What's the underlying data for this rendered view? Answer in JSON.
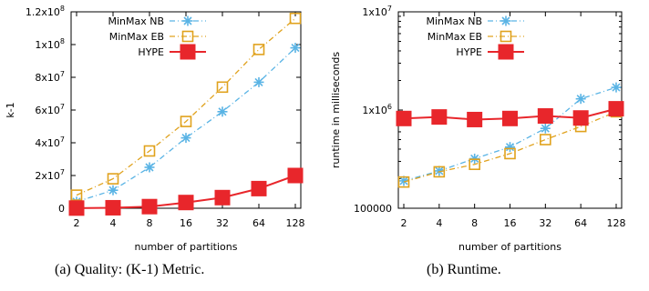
{
  "chart_data": [
    {
      "type": "line",
      "categories": [
        "2",
        "4",
        "8",
        "16",
        "32",
        "64",
        "128"
      ],
      "xlabel": "number of partitions",
      "ylabel": "k-1",
      "ylim": [
        0,
        120000000
      ],
      "yscale": "linear",
      "y_ticks": [
        {
          "value": 0,
          "label": "0"
        },
        {
          "value": 20000000,
          "label": "2x10^7"
        },
        {
          "value": 40000000,
          "label": "4x10^7"
        },
        {
          "value": 60000000,
          "label": "6x10^7"
        },
        {
          "value": 80000000,
          "label": "8x10^7"
        },
        {
          "value": 100000000,
          "label": "1x10^8"
        },
        {
          "value": 120000000,
          "label": "1.2x10^8"
        }
      ],
      "legend_position": "top-left",
      "series": [
        {
          "name": "MinMax NB",
          "color": "#5ab4e5",
          "marker": "asterisk",
          "values": [
            4000000,
            11000000,
            25000000,
            43000000,
            59000000,
            77000000,
            98000000
          ]
        },
        {
          "name": "MinMax EB",
          "color": "#e0a21d",
          "marker": "open-square",
          "values": [
            8000000,
            18000000,
            35000000,
            53000000,
            74000000,
            97000000,
            116000000
          ]
        },
        {
          "name": "HYPE",
          "color": "#e8262b",
          "marker": "filled-square",
          "values": [
            100000,
            300000,
            1000000,
            3500000,
            6500000,
            12000000,
            20000000
          ]
        }
      ],
      "caption": "(a) Quality: (K-1) Metric."
    },
    {
      "type": "line",
      "categories": [
        "2",
        "4",
        "8",
        "16",
        "32",
        "64",
        "128"
      ],
      "xlabel": "number of partitions",
      "ylabel": "runtime in milliseconds",
      "ylim": [
        100000,
        10000000
      ],
      "yscale": "log",
      "y_ticks": [
        {
          "value": 100000,
          "label": "100000"
        },
        {
          "value": 1000000,
          "label": "1x10^6"
        },
        {
          "value": 10000000,
          "label": "1x10^7"
        }
      ],
      "legend_position": "top-left",
      "series": [
        {
          "name": "MinMax NB",
          "color": "#5ab4e5",
          "marker": "asterisk",
          "values": [
            190000,
            240000,
            320000,
            420000,
            650000,
            1300000,
            1700000
          ]
        },
        {
          "name": "MinMax EB",
          "color": "#e0a21d",
          "marker": "open-square",
          "values": [
            185000,
            235000,
            280000,
            360000,
            500000,
            680000,
            960000
          ]
        },
        {
          "name": "HYPE",
          "color": "#e8262b",
          "marker": "filled-square",
          "values": [
            820000,
            850000,
            800000,
            820000,
            870000,
            830000,
            1030000
          ]
        }
      ],
      "caption": "(b) Runtime."
    }
  ]
}
